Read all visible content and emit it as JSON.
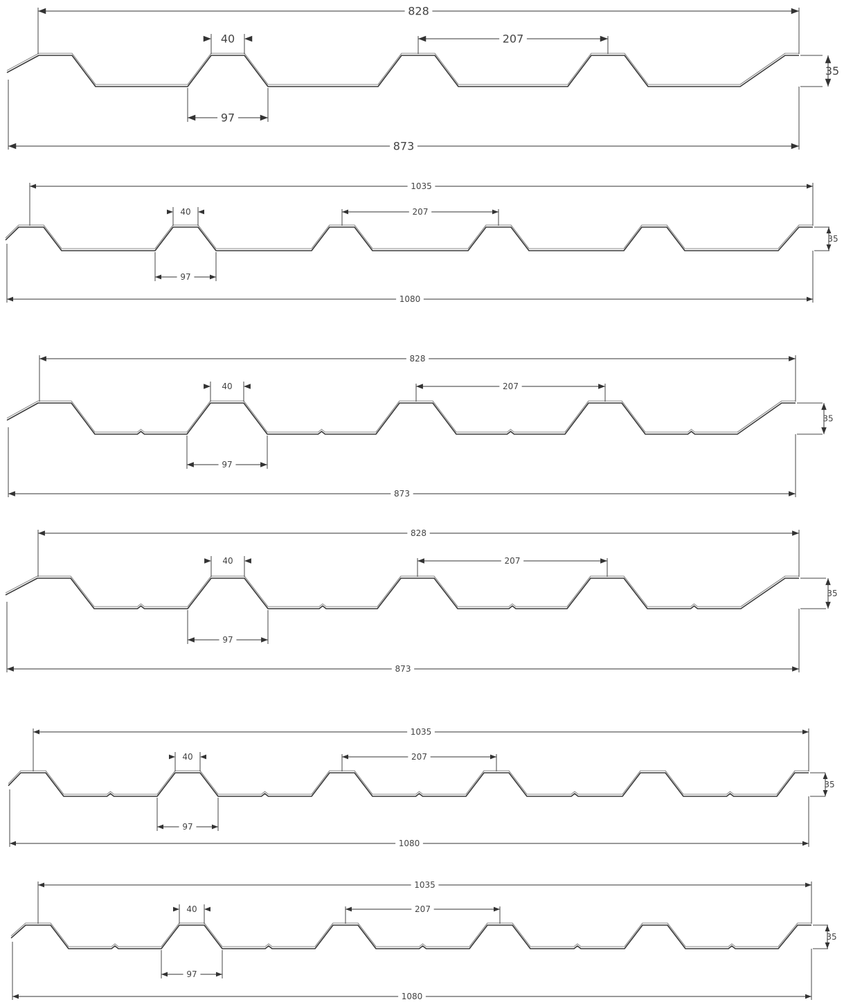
{
  "profiles": [
    {
      "id": 1,
      "kind": "plain",
      "total_width": "873",
      "cover_width": "828",
      "pitch": "207",
      "crest_width": "40",
      "valley_opening": "97",
      "height": "35"
    },
    {
      "id": 2,
      "kind": "plain",
      "total_width": "1080",
      "cover_width": "1035",
      "pitch": "207",
      "crest_width": "40",
      "valley_opening": "97",
      "height": "35"
    },
    {
      "id": 3,
      "kind": "ribbed",
      "total_width": "873",
      "cover_width": "828",
      "pitch": "207",
      "crest_width": "40",
      "valley_opening": "97",
      "height": "35"
    },
    {
      "id": 4,
      "kind": "ribbed",
      "total_width": "873",
      "cover_width": "828",
      "pitch": "207",
      "crest_width": "40",
      "valley_opening": "97",
      "height": "35"
    },
    {
      "id": 5,
      "kind": "ribbed",
      "total_width": "1080",
      "cover_width": "1035",
      "pitch": "207",
      "crest_width": "40",
      "valley_opening": "97",
      "height": "35"
    },
    {
      "id": 6,
      "kind": "ribbed",
      "total_width": "1080",
      "cover_width": "1035",
      "pitch": "207",
      "crest_width": "40",
      "valley_opening": "97",
      "height": "35"
    }
  ]
}
